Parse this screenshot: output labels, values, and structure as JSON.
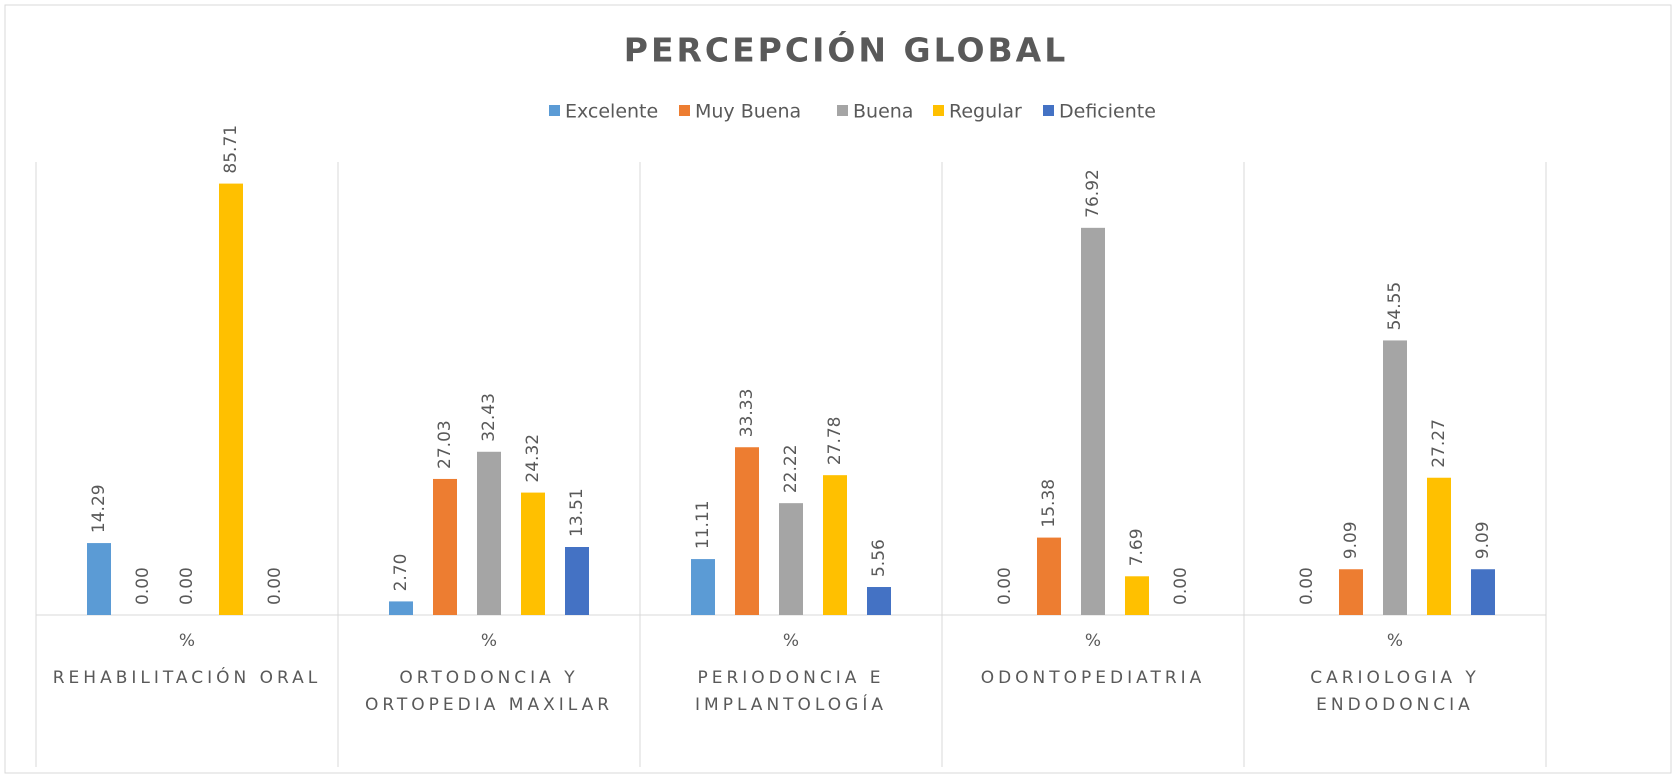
{
  "chart_data": {
    "type": "bar",
    "title": "PERCEPCIÓN GLOBAL",
    "categories": [
      "REHABILITACIÓN ORAL",
      "ORTODONCIA Y ORTOPEDIA MAXILAR",
      "PERIODONCIA E IMPLANTOLOGÍA",
      "ODONTOPEDIATRIA",
      "CARIOLOGIA Y ENDODONCIA"
    ],
    "subcategories": [
      "%",
      "%",
      "%",
      "%",
      "%"
    ],
    "series": [
      {
        "name": "Excelente",
        "color": "#5b9bd5",
        "values": [
          14.29,
          2.7,
          11.11,
          0,
          0
        ],
        "value_labels": [
          "14.29",
          "2.70",
          "11.11",
          "0.00",
          "0.00"
        ]
      },
      {
        "name": "Muy Buena",
        "color": "#ed7d31",
        "values": [
          0,
          27.03,
          33.33,
          15.38,
          9.09
        ],
        "value_labels": [
          "0.00",
          "27.03",
          "33.33",
          "15.38",
          "9.09"
        ]
      },
      {
        "name": "Buena",
        "color": "#a5a5a5",
        "values": [
          0,
          32.43,
          22.22,
          76.92,
          54.55
        ],
        "value_labels": [
          "0.00",
          "32.43",
          "22.22",
          "76.92",
          "54.55"
        ]
      },
      {
        "name": "Regular",
        "color": "#ffc000",
        "values": [
          85.71,
          24.32,
          27.78,
          7.69,
          27.27
        ],
        "value_labels": [
          "85.71",
          "24.32",
          "27.78",
          "7.69",
          "27.27"
        ]
      },
      {
        "name": "Deficiente",
        "color": "#4472c4",
        "values": [
          0,
          13.51,
          5.56,
          0,
          9.09
        ],
        "value_labels": [
          "0.00",
          "13.51",
          "5.56",
          "0.00",
          "9.09"
        ]
      }
    ],
    "ylim": [
      0,
      90
    ],
    "legend": "top"
  }
}
